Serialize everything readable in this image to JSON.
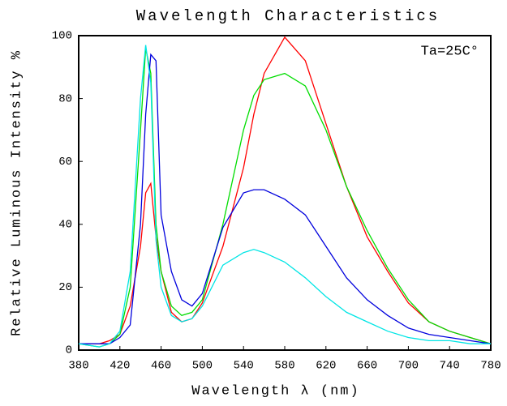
{
  "chart_data": {
    "type": "line",
    "title": "Wavelength Characteristics",
    "x_label": "Wavelength λ (nm)",
    "y_label": "Relative Luminous Intensity %",
    "annotation": "Ta=25C°",
    "x": [
      380,
      400,
      410,
      420,
      430,
      440,
      445,
      450,
      455,
      460,
      470,
      480,
      490,
      500,
      520,
      540,
      550,
      560,
      580,
      600,
      620,
      640,
      660,
      680,
      700,
      720,
      740,
      760,
      780
    ],
    "series": [
      {
        "color": "#ff0000",
        "values": [
          2,
          2,
          3,
          5,
          14,
          33,
          50,
          53,
          36,
          25,
          12,
          9,
          10,
          15,
          33,
          58,
          75,
          88,
          99.5,
          92,
          72,
          52,
          36,
          25,
          15,
          9,
          6,
          4,
          2
        ]
      },
      {
        "color": "#00dd00",
        "values": [
          2,
          1,
          2,
          5,
          20,
          70,
          96,
          88,
          40,
          25,
          14,
          11,
          12,
          16,
          40,
          70,
          81,
          86,
          88,
          84,
          70,
          52,
          38,
          26,
          16,
          9,
          6,
          4,
          2
        ]
      },
      {
        "color": "#0000dd",
        "values": [
          2,
          2,
          2,
          4,
          8,
          40,
          75,
          94,
          92,
          43,
          25,
          16,
          14,
          18,
          39,
          50,
          51,
          51,
          48,
          43,
          33,
          23,
          16,
          11,
          7,
          5,
          4,
          3,
          2
        ]
      },
      {
        "color": "#00e5e5",
        "values": [
          2,
          1,
          2,
          6,
          25,
          80,
          97,
          85,
          35,
          20,
          11,
          9,
          10,
          14,
          27,
          31,
          32,
          31,
          28,
          23,
          17,
          12,
          9,
          6,
          4,
          3,
          3,
          2,
          2
        ]
      }
    ],
    "xlim": [
      380,
      780
    ],
    "ylim": [
      0,
      100
    ],
    "xticks": [
      380,
      420,
      460,
      500,
      540,
      580,
      620,
      660,
      700,
      740,
      780
    ],
    "yticks": [
      0,
      20,
      40,
      60,
      80,
      100
    ],
    "grid": false
  }
}
